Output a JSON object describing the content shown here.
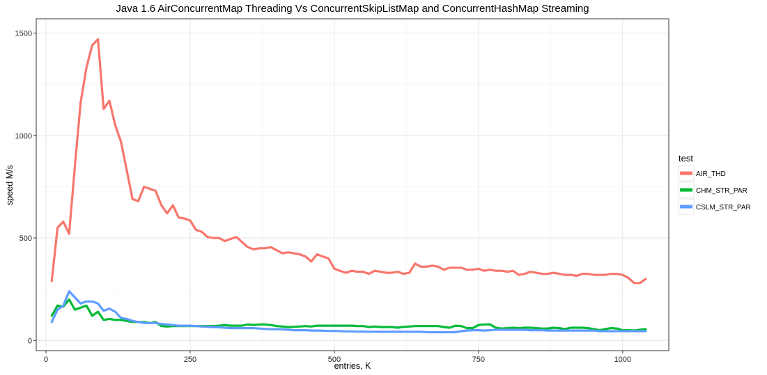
{
  "chart_data": {
    "type": "line",
    "title": "Java 1.6 AirConcurrentMap Threading Vs ConcurrentSkipListMap and ConcurrentHashMap Streaming",
    "xlabel": "entries, K",
    "ylabel": "speed M/s",
    "xlim": [
      -17,
      1080
    ],
    "ylim": [
      -50,
      1570
    ],
    "x_ticks": [
      0,
      250,
      500,
      750,
      1000
    ],
    "y_ticks": [
      0,
      500,
      1000,
      1500
    ],
    "grid": true,
    "legend": {
      "title": "test",
      "position": "right"
    },
    "series": [
      {
        "name": "AIR_THD",
        "color": "#F8766D",
        "x": [
          10,
          20,
          30,
          40,
          50,
          60,
          70,
          80,
          90,
          100,
          110,
          120,
          130,
          140,
          150,
          160,
          170,
          180,
          190,
          200,
          210,
          220,
          230,
          240,
          250,
          260,
          270,
          280,
          290,
          300,
          310,
          320,
          330,
          340,
          350,
          360,
          370,
          380,
          390,
          400,
          410,
          420,
          430,
          440,
          450,
          460,
          470,
          480,
          490,
          500,
          510,
          520,
          530,
          540,
          550,
          560,
          570,
          580,
          590,
          600,
          610,
          620,
          630,
          640,
          650,
          660,
          670,
          680,
          690,
          700,
          710,
          720,
          730,
          740,
          750,
          760,
          770,
          780,
          790,
          800,
          810,
          820,
          830,
          840,
          850,
          860,
          870,
          880,
          890,
          900,
          910,
          920,
          930,
          940,
          950,
          960,
          970,
          980,
          990,
          1000,
          1010,
          1020,
          1030,
          1040
        ],
        "y": [
          290,
          550,
          580,
          520,
          850,
          1160,
          1330,
          1440,
          1470,
          1130,
          1170,
          1050,
          970,
          830,
          690,
          680,
          750,
          740,
          730,
          660,
          620,
          660,
          600,
          595,
          585,
          540,
          530,
          505,
          500,
          500,
          485,
          495,
          505,
          480,
          455,
          445,
          450,
          450,
          455,
          440,
          425,
          430,
          425,
          420,
          410,
          385,
          420,
          410,
          400,
          350,
          340,
          330,
          340,
          335,
          335,
          325,
          340,
          335,
          330,
          330,
          335,
          325,
          330,
          375,
          360,
          360,
          365,
          360,
          345,
          355,
          355,
          355,
          345,
          345,
          350,
          340,
          345,
          340,
          340,
          335,
          340,
          320,
          325,
          335,
          330,
          325,
          325,
          330,
          325,
          320,
          320,
          315,
          325,
          325,
          320,
          320,
          320,
          325,
          325,
          320,
          305,
          280,
          280,
          300
        ]
      },
      {
        "name": "CHM_STR_PAR",
        "color": "#00BA38",
        "x": [
          10,
          20,
          30,
          40,
          50,
          60,
          70,
          80,
          90,
          100,
          110,
          120,
          130,
          140,
          150,
          160,
          170,
          180,
          190,
          200,
          210,
          220,
          230,
          240,
          250,
          260,
          270,
          280,
          290,
          300,
          310,
          320,
          330,
          340,
          350,
          360,
          370,
          380,
          390,
          400,
          410,
          420,
          430,
          440,
          450,
          460,
          470,
          480,
          490,
          500,
          510,
          520,
          530,
          540,
          550,
          560,
          570,
          580,
          590,
          600,
          610,
          620,
          630,
          640,
          650,
          660,
          670,
          680,
          690,
          700,
          710,
          720,
          730,
          740,
          750,
          760,
          770,
          780,
          790,
          800,
          810,
          820,
          830,
          840,
          850,
          860,
          870,
          880,
          890,
          900,
          910,
          920,
          930,
          940,
          950,
          960,
          970,
          980,
          990,
          1000,
          1010,
          1020,
          1030,
          1040
        ],
        "y": [
          120,
          170,
          165,
          200,
          150,
          160,
          170,
          120,
          140,
          100,
          105,
          100,
          100,
          95,
          90,
          90,
          90,
          85,
          90,
          70,
          68,
          70,
          70,
          70,
          70,
          70,
          70,
          70,
          70,
          72,
          75,
          72,
          72,
          72,
          78,
          75,
          78,
          78,
          75,
          70,
          68,
          65,
          66,
          68,
          70,
          68,
          72,
          72,
          72,
          72,
          72,
          72,
          72,
          70,
          70,
          65,
          68,
          65,
          65,
          65,
          62,
          66,
          68,
          70,
          70,
          70,
          70,
          70,
          65,
          62,
          72,
          70,
          60,
          60,
          75,
          78,
          78,
          62,
          58,
          60,
          62,
          60,
          62,
          62,
          60,
          58,
          58,
          62,
          60,
          55,
          62,
          62,
          62,
          60,
          55,
          50,
          55,
          60,
          58,
          50,
          50,
          48,
          52,
          55
        ]
      },
      {
        "name": "CSLM_STR_PAR",
        "color": "#619CFF",
        "x": [
          10,
          20,
          30,
          40,
          50,
          60,
          70,
          80,
          90,
          100,
          110,
          120,
          130,
          140,
          150,
          160,
          170,
          180,
          190,
          200,
          210,
          220,
          230,
          240,
          250,
          260,
          270,
          280,
          290,
          300,
          310,
          320,
          330,
          340,
          350,
          360,
          370,
          380,
          390,
          400,
          410,
          420,
          430,
          440,
          450,
          460,
          470,
          480,
          490,
          500,
          510,
          520,
          530,
          540,
          550,
          560,
          570,
          580,
          590,
          600,
          610,
          620,
          630,
          640,
          650,
          660,
          670,
          680,
          690,
          700,
          710,
          720,
          730,
          740,
          750,
          760,
          770,
          780,
          790,
          800,
          810,
          820,
          830,
          840,
          850,
          860,
          870,
          880,
          890,
          900,
          910,
          920,
          930,
          940,
          950,
          960,
          970,
          980,
          990,
          1000,
          1010,
          1020,
          1030,
          1040
        ],
        "y": [
          90,
          150,
          170,
          240,
          210,
          180,
          190,
          190,
          180,
          145,
          155,
          140,
          110,
          105,
          95,
          90,
          85,
          85,
          85,
          80,
          78,
          75,
          72,
          72,
          72,
          70,
          68,
          66,
          65,
          64,
          62,
          60,
          60,
          60,
          60,
          60,
          58,
          56,
          55,
          55,
          54,
          52,
          50,
          50,
          50,
          48,
          48,
          47,
          46,
          46,
          45,
          44,
          44,
          43,
          43,
          42,
          42,
          42,
          42,
          42,
          42,
          42,
          42,
          42,
          42,
          40,
          40,
          40,
          40,
          40,
          40,
          45,
          48,
          50,
          50,
          48,
          50,
          52,
          52,
          52,
          52,
          52,
          52,
          50,
          50,
          50,
          48,
          48,
          48,
          48,
          48,
          48,
          48,
          48,
          48,
          45,
          45,
          45,
          45,
          45,
          45,
          45,
          45,
          45
        ]
      }
    ]
  }
}
